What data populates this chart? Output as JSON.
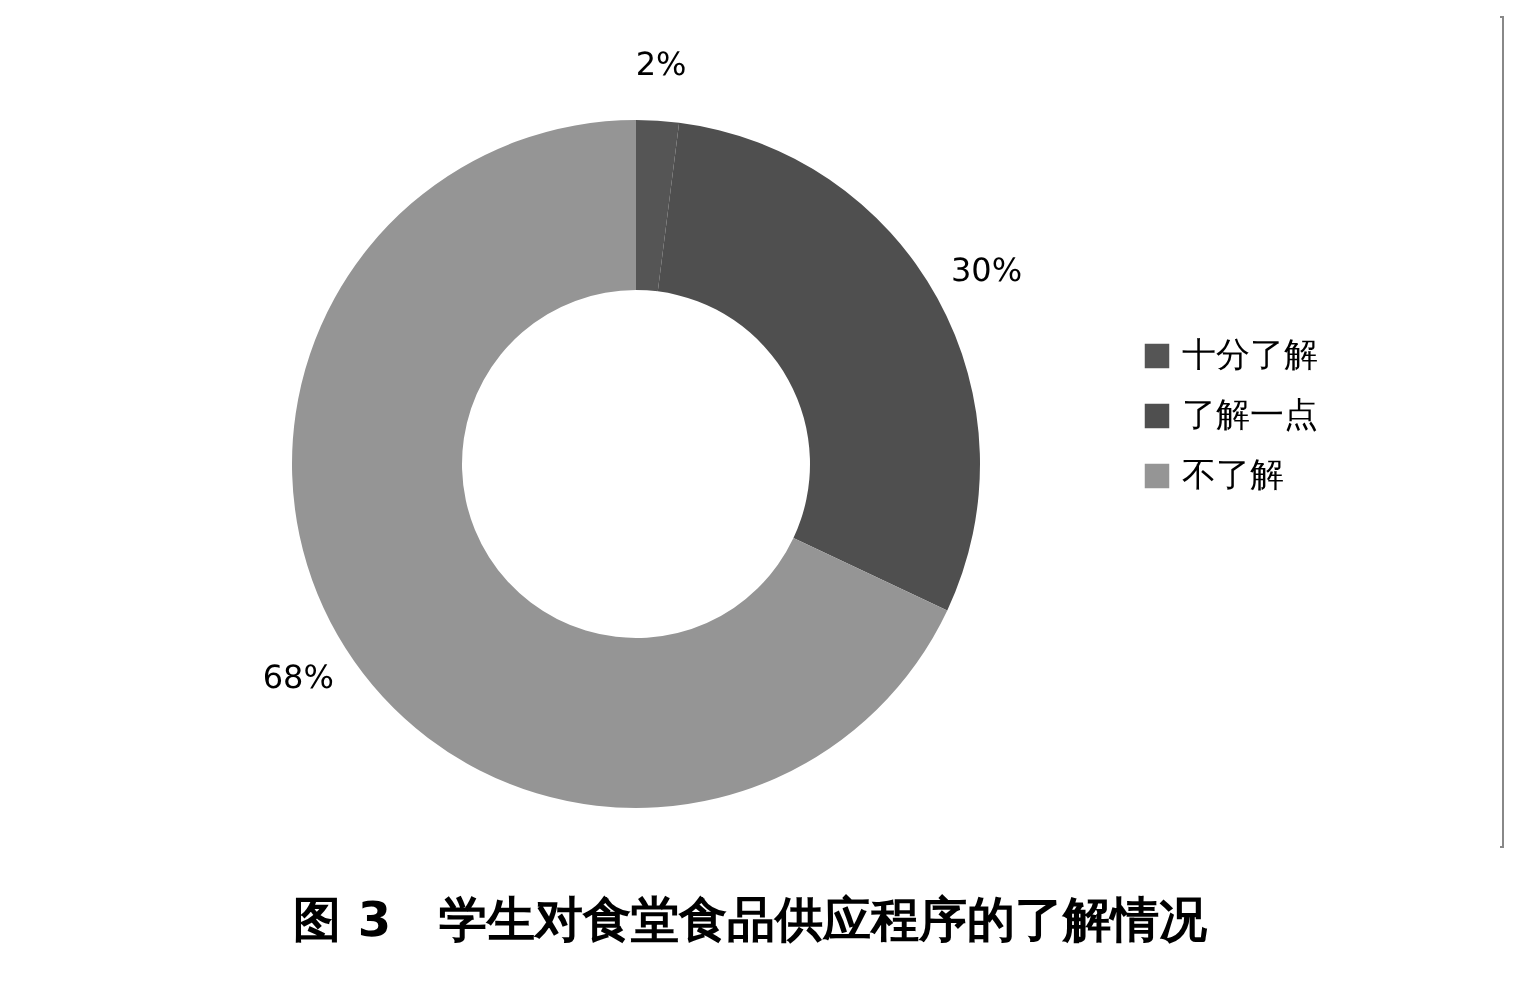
{
  "chart_data": {
    "type": "donut",
    "title": "图 3　学生对食堂食品供应程序的了解情况",
    "categories": [
      "十分了解",
      "了解一点",
      "不了解"
    ],
    "values": [
      2,
      30,
      68
    ],
    "colors": [
      "#555555",
      "#4f4f4f",
      "#959595"
    ],
    "value_labels": [
      "2%",
      "30%",
      "68%"
    ],
    "legend": "right"
  }
}
